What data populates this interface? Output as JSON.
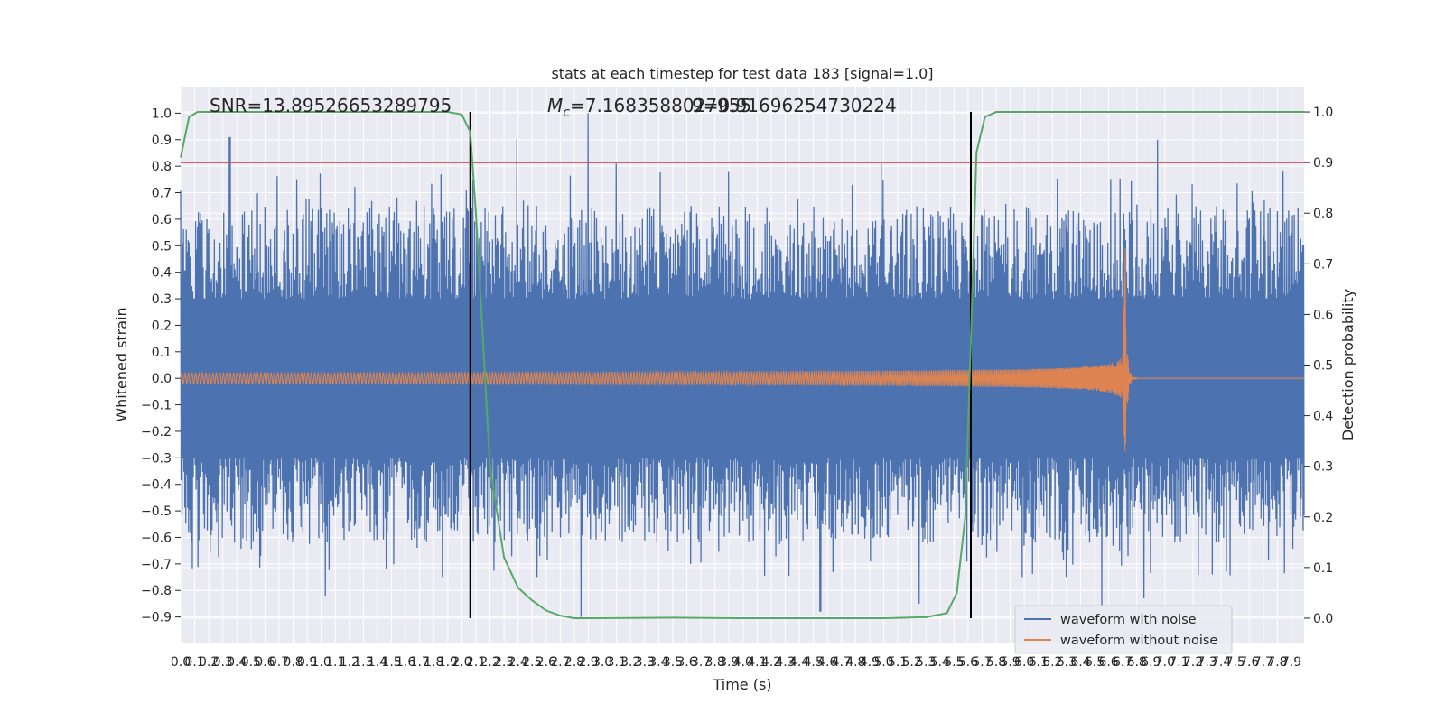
{
  "chart_data": {
    "type": "line",
    "title": "stats at each timestep for test data 183 [signal=1.0]",
    "xlabel": "Time (s)",
    "ylabel": "Whitened strain",
    "y2label": "Detection probability",
    "xlim": [
      0.0,
      7.99
    ],
    "ylim": [
      -1.0,
      1.1
    ],
    "y2lim": [
      -0.05,
      1.05
    ],
    "x_ticks": [
      "0.0",
      "0.1",
      "0.2",
      "0.3",
      "0.4",
      "0.5",
      "0.6",
      "0.7",
      "0.8",
      "0.9",
      "1.0",
      "1.1",
      "1.2",
      "1.3",
      "1.4",
      "1.5",
      "1.6",
      "1.7",
      "1.8",
      "1.9",
      "2.0",
      "2.1",
      "2.2",
      "2.3",
      "2.4",
      "2.5",
      "2.6",
      "2.7",
      "2.8",
      "2.9",
      "3.0",
      "3.1",
      "3.2",
      "3.3",
      "3.4",
      "3.5",
      "3.6",
      "3.7",
      "3.8",
      "3.9",
      "4.0",
      "4.1",
      "4.2",
      "4.3",
      "4.4",
      "4.5",
      "4.6",
      "4.7",
      "4.8",
      "4.9",
      "5.0",
      "5.1",
      "5.2",
      "5.3",
      "5.4",
      "5.5",
      "5.6",
      "5.7",
      "5.8",
      "5.9",
      "6.0",
      "6.1",
      "6.2",
      "6.3",
      "6.4",
      "6.5",
      "6.6",
      "6.7",
      "6.8",
      "6.9",
      "7.0",
      "7.1",
      "7.2",
      "7.3",
      "7.4",
      "7.5",
      "7.6",
      "7.7",
      "7.8",
      "7.9"
    ],
    "y_ticks": [
      "1.0",
      "0.9",
      "0.8",
      "0.7",
      "0.6",
      "0.5",
      "0.4",
      "0.3",
      "0.2",
      "0.1",
      "0.0",
      "−0.1",
      "−0.2",
      "−0.3",
      "−0.4",
      "−0.5",
      "−0.6",
      "−0.7",
      "−0.8",
      "−0.9"
    ],
    "y2_ticks": [
      "1.0",
      "0.9",
      "0.8",
      "0.7",
      "0.6",
      "0.5",
      "0.4",
      "0.3",
      "0.2",
      "0.1",
      "0.0"
    ],
    "annotations": {
      "snr": "SNR=13.89526653289795",
      "mc_prefix": "M",
      "mc_sub": "c",
      "mc_value": "=7.1683588027955",
      "mc_overlap": "9=0.91696254730224"
    },
    "threshold": {
      "y2": 0.9,
      "color": "#c44e52"
    },
    "event_lines_x": [
      2.06,
      5.62
    ],
    "legend": {
      "placement": "bottom-right"
    },
    "grid": true,
    "series": [
      {
        "name": "waveform with noise",
        "color": "#4c72b0",
        "noise_envelope": {
          "upper_typical": [
            0.3,
            0.65
          ],
          "lower_typical": [
            -0.3,
            -0.62
          ],
          "spike_maxima": [
            {
              "x": 0.35,
              "y": 0.91
            },
            {
              "x": 2.39,
              "y": 0.9
            },
            {
              "x": 2.9,
              "y": 1.0
            },
            {
              "x": 3.1,
              "y": 0.81
            },
            {
              "x": 4.98,
              "y": 0.81
            },
            {
              "x": 6.95,
              "y": 0.9
            }
          ],
          "spike_minima": [
            {
              "x": 1.03,
              "y": -0.82
            },
            {
              "x": 2.85,
              "y": -0.9
            },
            {
              "x": 4.55,
              "y": -0.88
            },
            {
              "x": 5.25,
              "y": -0.85
            },
            {
              "x": 6.55,
              "y": -0.86
            },
            {
              "x": 6.85,
              "y": -0.83
            }
          ]
        }
      },
      {
        "name": "waveform without noise",
        "color": "#dd8452",
        "chirp": {
          "start_amplitude": 0.02,
          "merger_x": 6.72,
          "merger_peak": 0.51,
          "merger_trough": -0.32,
          "ringdown_end_x": 6.8
        }
      },
      {
        "name": "detection probability",
        "axis": "right",
        "color": "#55a868",
        "x": [
          0.0,
          0.06,
          0.12,
          0.5,
          1.0,
          1.5,
          1.9,
          2.0,
          2.06,
          2.1,
          2.15,
          2.2,
          2.3,
          2.4,
          2.5,
          2.6,
          2.7,
          2.8,
          2.9,
          3.5,
          4.0,
          4.5,
          5.0,
          5.3,
          5.45,
          5.52,
          5.58,
          5.62,
          5.66,
          5.72,
          5.8,
          5.9,
          6.5,
          7.0,
          7.99
        ],
        "y": [
          0.91,
          0.99,
          1.0,
          1.0,
          1.0,
          1.0,
          1.0,
          0.995,
          0.96,
          0.8,
          0.55,
          0.3,
          0.12,
          0.06,
          0.035,
          0.015,
          0.005,
          0.0,
          0.0,
          0.001,
          0.0,
          0.0,
          0.0,
          0.002,
          0.01,
          0.05,
          0.2,
          0.55,
          0.92,
          0.99,
          1.0,
          1.0,
          1.0,
          1.0,
          1.0
        ]
      }
    ]
  }
}
